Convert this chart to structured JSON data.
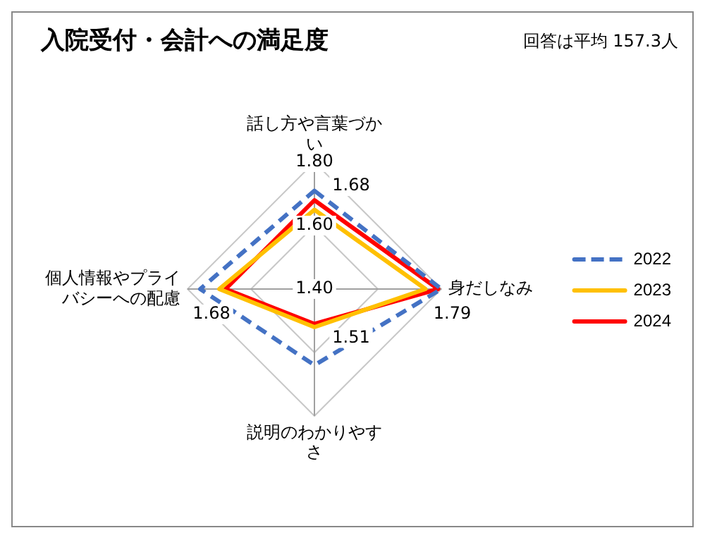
{
  "chart_data": {
    "type": "radar",
    "title": "入院受付・会計への満足度",
    "annotations": [
      "回答は平均 157.3人"
    ],
    "categories": [
      "話し方や言葉づかい",
      "身だしなみ",
      "説明のわかりやすさ",
      "個人情報やプライバシーへの配慮"
    ],
    "series": [
      {
        "name": "2022",
        "color": "#4472c4",
        "line_style": "dashed",
        "values": [
          1.71,
          1.8,
          1.64,
          1.76
        ]
      },
      {
        "name": "2023",
        "color": "#ffc000",
        "values": [
          1.65,
          1.75,
          1.52,
          1.7
        ]
      },
      {
        "name": "2024",
        "color": "#ff0000",
        "values": [
          1.68,
          1.79,
          1.51,
          1.68
        ],
        "value_labels": [
          "1.68",
          "1.79",
          "1.51",
          "1.68"
        ]
      }
    ],
    "ylim": [
      1.4,
      1.8
    ],
    "yticks": [
      {
        "value": 1.4,
        "label": "1.40"
      },
      {
        "value": 1.6,
        "label": "1.60"
      },
      {
        "value": 1.8,
        "label": "1.80"
      }
    ],
    "grid": true,
    "legend": "right",
    "marker": "none",
    "line_style": "solid"
  }
}
